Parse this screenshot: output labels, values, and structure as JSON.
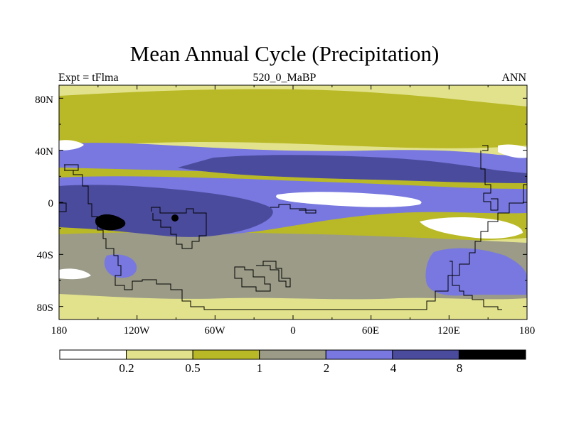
{
  "figure": {
    "title": "Mean Annual Cycle (Precipitation)",
    "left_string": "Expt = tFlma",
    "center_string": "520_0_MaBP",
    "right_string": "ANN"
  },
  "axes": {
    "lat_labels": [
      "80N",
      "40N",
      "0",
      "40S",
      "80S"
    ],
    "lat_values": [
      80,
      40,
      0,
      -40,
      -80
    ],
    "lon_labels": [
      "180",
      "120W",
      "60W",
      "0",
      "60E",
      "120E",
      "180"
    ],
    "lon_values": [
      -180,
      -120,
      -60,
      0,
      60,
      120,
      180
    ]
  },
  "colorbar": {
    "levels": [
      "0.2",
      "0.5",
      "1",
      "2",
      "4",
      "8"
    ],
    "colors": [
      "#ffffff",
      "#e2e28c",
      "#b9b927",
      "#9b9b88",
      "#7878e0",
      "#4b4b9d",
      "#000000"
    ]
  }
}
